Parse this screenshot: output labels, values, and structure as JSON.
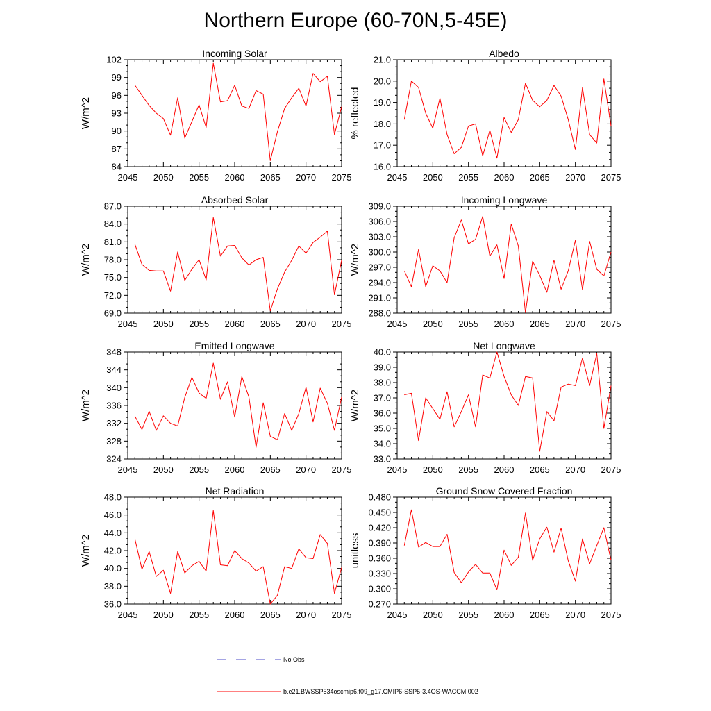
{
  "title": "Northern Europe (60-70N,5-45E)",
  "legend": {
    "obs_label": "No Obs",
    "obs_color": "#4b4bc8",
    "model_label": "b.e21.BWSSP534oscmip6.f09_g17.CMIP6-SSP5-3.4OS-WACCM.002",
    "model_color": "#ff0000"
  },
  "chart_data": [
    {
      "type": "line",
      "title": "Incoming Solar",
      "xlabel": "",
      "ylabel": "W/m^2",
      "xlim": [
        2045,
        2075
      ],
      "ylim": [
        84,
        102
      ],
      "xticks": [
        2045,
        2050,
        2055,
        2060,
        2065,
        2070,
        2075
      ],
      "yticks": [
        84,
        87,
        90,
        93,
        96,
        99,
        102
      ],
      "ytick_labels": [
        "84",
        "87",
        "90",
        "93",
        "96",
        "99",
        "102"
      ],
      "x": [
        2046,
        2047,
        2048,
        2049,
        2050,
        2051,
        2052,
        2053,
        2054,
        2055,
        2056,
        2057,
        2058,
        2059,
        2060,
        2061,
        2062,
        2063,
        2064,
        2065,
        2066,
        2067,
        2068,
        2069,
        2070,
        2071,
        2072,
        2073,
        2074,
        2075
      ],
      "series": [
        {
          "color": "#ff0000",
          "values": [
            97.7,
            96.0,
            94.3,
            93.0,
            92.1,
            89.3,
            95.6,
            88.8,
            91.6,
            94.4,
            90.6,
            101.4,
            94.9,
            95.1,
            97.7,
            94.2,
            93.8,
            96.8,
            96.2,
            85.0,
            89.9,
            93.8,
            95.6,
            97.2,
            94.2,
            99.7,
            98.3,
            99.2,
            89.4,
            94.1
          ]
        }
      ]
    },
    {
      "type": "line",
      "title": "Albedo",
      "xlabel": "",
      "ylabel": "% reflected",
      "xlim": [
        2045,
        2075
      ],
      "ylim": [
        16,
        21
      ],
      "xticks": [
        2045,
        2050,
        2055,
        2060,
        2065,
        2070,
        2075
      ],
      "yticks": [
        16,
        17,
        18,
        19,
        20,
        21
      ],
      "ytick_labels": [
        "16.0",
        "17.0",
        "18.0",
        "19.0",
        "20.0",
        "21.0"
      ],
      "x": [
        2046,
        2047,
        2048,
        2049,
        2050,
        2051,
        2052,
        2053,
        2054,
        2055,
        2056,
        2057,
        2058,
        2059,
        2060,
        2061,
        2062,
        2063,
        2064,
        2065,
        2066,
        2067,
        2068,
        2069,
        2070,
        2071,
        2072,
        2073,
        2074,
        2075
      ],
      "series": [
        {
          "color": "#ff0000",
          "values": [
            18.2,
            20.0,
            19.7,
            18.5,
            17.8,
            19.2,
            17.5,
            16.6,
            16.9,
            17.9,
            18.0,
            16.5,
            17.7,
            16.4,
            18.3,
            17.6,
            18.2,
            19.9,
            19.1,
            18.8,
            19.1,
            19.8,
            19.3,
            18.2,
            16.8,
            19.7,
            17.5,
            17.1,
            20.1,
            17.9
          ]
        }
      ]
    },
    {
      "type": "line",
      "title": "Absorbed Solar",
      "xlabel": "",
      "ylabel": "W/m^2",
      "xlim": [
        2045,
        2075
      ],
      "ylim": [
        69,
        87
      ],
      "xticks": [
        2045,
        2050,
        2055,
        2060,
        2065,
        2070,
        2075
      ],
      "yticks": [
        69,
        72,
        75,
        78,
        81,
        84,
        87
      ],
      "ytick_labels": [
        "69.0",
        "72.0",
        "75.0",
        "78.0",
        "81.0",
        "84.0",
        "87.0"
      ],
      "x": [
        2046,
        2047,
        2048,
        2049,
        2050,
        2051,
        2052,
        2053,
        2054,
        2055,
        2056,
        2057,
        2058,
        2059,
        2060,
        2061,
        2062,
        2063,
        2064,
        2065,
        2066,
        2067,
        2068,
        2069,
        2070,
        2071,
        2072,
        2073,
        2074,
        2075
      ],
      "series": [
        {
          "color": "#ff0000",
          "values": [
            80.6,
            77.2,
            76.2,
            76.1,
            76.1,
            72.7,
            79.3,
            74.5,
            76.4,
            78.0,
            74.6,
            85.1,
            78.6,
            80.3,
            80.4,
            78.3,
            77.1,
            78.0,
            78.4,
            69.4,
            73.1,
            75.9,
            77.9,
            80.3,
            79.1,
            80.9,
            81.8,
            82.8,
            72.1,
            77.9
          ]
        }
      ]
    },
    {
      "type": "line",
      "title": "Incoming Longwave",
      "xlabel": "",
      "ylabel": "W/m^2",
      "xlim": [
        2045,
        2075
      ],
      "ylim": [
        288,
        309
      ],
      "xticks": [
        2045,
        2050,
        2055,
        2060,
        2065,
        2070,
        2075
      ],
      "yticks": [
        288,
        291,
        294,
        297,
        300,
        303,
        306,
        309
      ],
      "ytick_labels": [
        "288.0",
        "291.0",
        "294.0",
        "297.0",
        "300.0",
        "303.0",
        "306.0",
        "309.0"
      ],
      "x": [
        2046,
        2047,
        2048,
        2049,
        2050,
        2051,
        2052,
        2053,
        2054,
        2055,
        2056,
        2057,
        2058,
        2059,
        2060,
        2061,
        2062,
        2063,
        2064,
        2065,
        2066,
        2067,
        2068,
        2069,
        2070,
        2071,
        2072,
        2073,
        2074,
        2075
      ],
      "series": [
        {
          "color": "#ff0000",
          "values": [
            296.3,
            293.2,
            300.5,
            293.2,
            297.3,
            296.3,
            294.0,
            302.8,
            306.3,
            301.6,
            302.5,
            307.0,
            299.2,
            301.4,
            294.8,
            305.5,
            301.2,
            288.1,
            298.2,
            295.4,
            292.1,
            298.4,
            292.7,
            296.3,
            302.3,
            292.6,
            302.1,
            296.6,
            295.3,
            300.0
          ]
        }
      ]
    },
    {
      "type": "line",
      "title": "Emitted Longwave",
      "xlabel": "",
      "ylabel": "W/m^2",
      "xlim": [
        2045,
        2075
      ],
      "ylim": [
        324,
        348
      ],
      "xticks": [
        2045,
        2050,
        2055,
        2060,
        2065,
        2070,
        2075
      ],
      "yticks": [
        324,
        328,
        332,
        336,
        340,
        344,
        348
      ],
      "ytick_labels": [
        "324",
        "328",
        "332",
        "336",
        "340",
        "344",
        "348"
      ],
      "x": [
        2046,
        2047,
        2048,
        2049,
        2050,
        2051,
        2052,
        2053,
        2054,
        2055,
        2056,
        2057,
        2058,
        2059,
        2060,
        2061,
        2062,
        2063,
        2064,
        2065,
        2066,
        2067,
        2068,
        2069,
        2070,
        2071,
        2072,
        2073,
        2074,
        2075
      ],
      "series": [
        {
          "color": "#ff0000",
          "values": [
            333.6,
            330.6,
            334.7,
            330.4,
            333.7,
            332.0,
            331.4,
            337.8,
            342.3,
            338.8,
            337.6,
            345.5,
            337.4,
            341.3,
            333.4,
            342.5,
            337.9,
            326.6,
            336.6,
            329.1,
            328.3,
            334.2,
            330.4,
            334.2,
            340.1,
            332.3,
            339.9,
            336.5,
            330.4,
            337.9
          ]
        }
      ]
    },
    {
      "type": "line",
      "title": "Net Longwave",
      "xlabel": "",
      "ylabel": "W/m^2",
      "xlim": [
        2045,
        2075
      ],
      "ylim": [
        33,
        40
      ],
      "xticks": [
        2045,
        2050,
        2055,
        2060,
        2065,
        2070,
        2075
      ],
      "yticks": [
        33,
        34,
        35,
        36,
        37,
        38,
        39,
        40
      ],
      "ytick_labels": [
        "33.0",
        "34.0",
        "35.0",
        "36.0",
        "37.0",
        "38.0",
        "39.0",
        "40.0"
      ],
      "x": [
        2046,
        2047,
        2048,
        2049,
        2050,
        2051,
        2052,
        2053,
        2054,
        2055,
        2056,
        2057,
        2058,
        2059,
        2060,
        2061,
        2062,
        2063,
        2064,
        2065,
        2066,
        2067,
        2068,
        2069,
        2070,
        2071,
        2072,
        2073,
        2074,
        2075
      ],
      "series": [
        {
          "color": "#ff0000",
          "values": [
            37.2,
            37.3,
            34.2,
            37.0,
            36.3,
            35.6,
            37.4,
            35.1,
            36.1,
            37.2,
            35.1,
            38.5,
            38.3,
            40.0,
            38.4,
            37.2,
            36.5,
            38.4,
            38.3,
            33.5,
            36.1,
            35.5,
            37.7,
            37.9,
            37.8,
            39.6,
            37.8,
            39.9,
            35.0,
            37.8
          ]
        }
      ]
    },
    {
      "type": "line",
      "title": "Net Radiation",
      "xlabel": "",
      "ylabel": "W/m^2",
      "xlim": [
        2045,
        2075
      ],
      "ylim": [
        36,
        48
      ],
      "xticks": [
        2045,
        2050,
        2055,
        2060,
        2065,
        2070,
        2075
      ],
      "yticks": [
        36,
        38,
        40,
        42,
        44,
        46,
        48
      ],
      "ytick_labels": [
        "36.0",
        "38.0",
        "40.0",
        "42.0",
        "44.0",
        "46.0",
        "48.0"
      ],
      "x": [
        2046,
        2047,
        2048,
        2049,
        2050,
        2051,
        2052,
        2053,
        2054,
        2055,
        2056,
        2057,
        2058,
        2059,
        2060,
        2061,
        2062,
        2063,
        2064,
        2065,
        2066,
        2067,
        2068,
        2069,
        2070,
        2071,
        2072,
        2073,
        2074,
        2075
      ],
      "series": [
        {
          "color": "#ff0000",
          "values": [
            43.3,
            39.9,
            41.9,
            39.1,
            39.8,
            37.2,
            41.9,
            39.5,
            40.3,
            40.8,
            39.7,
            46.5,
            40.4,
            40.3,
            42.0,
            41.1,
            40.6,
            39.7,
            40.2,
            36.0,
            37.0,
            40.2,
            40.0,
            42.2,
            41.2,
            41.1,
            43.8,
            42.8,
            37.2,
            40.1
          ]
        }
      ]
    },
    {
      "type": "line",
      "title": "Ground Snow Covered Fraction",
      "xlabel": "",
      "ylabel": "unitless",
      "xlim": [
        2045,
        2075
      ],
      "ylim": [
        0.27,
        0.48
      ],
      "xticks": [
        2045,
        2050,
        2055,
        2060,
        2065,
        2070,
        2075
      ],
      "yticks": [
        0.27,
        0.3,
        0.33,
        0.36,
        0.39,
        0.42,
        0.45,
        0.48
      ],
      "ytick_labels": [
        "0.270",
        "0.300",
        "0.330",
        "0.360",
        "0.390",
        "0.420",
        "0.450",
        "0.480"
      ],
      "x": [
        2046,
        2047,
        2048,
        2049,
        2050,
        2051,
        2052,
        2053,
        2054,
        2055,
        2056,
        2057,
        2058,
        2059,
        2060,
        2061,
        2062,
        2063,
        2064,
        2065,
        2066,
        2067,
        2068,
        2069,
        2070,
        2071,
        2072,
        2073,
        2074,
        2075
      ],
      "series": [
        {
          "color": "#ff0000",
          "values": [
            0.385,
            0.455,
            0.382,
            0.391,
            0.383,
            0.383,
            0.407,
            0.332,
            0.312,
            0.333,
            0.348,
            0.331,
            0.331,
            0.298,
            0.376,
            0.346,
            0.362,
            0.449,
            0.356,
            0.398,
            0.421,
            0.372,
            0.419,
            0.355,
            0.315,
            0.398,
            0.349,
            0.385,
            0.42,
            0.356
          ]
        }
      ]
    }
  ]
}
